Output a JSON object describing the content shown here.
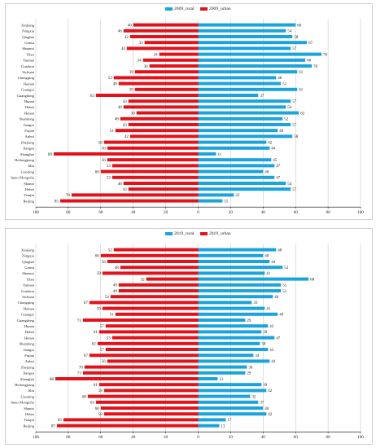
{
  "colors": {
    "rural": "#1aa3dc",
    "urban": "#e3121a",
    "axis": "#000000",
    "grid": "#bfbfbf"
  },
  "chart_data": [
    {
      "type": "bar",
      "orientation": "horizontal-diverging",
      "categories": [
        "Xinjiang",
        "Ningxia",
        "Qinghai",
        "Gansu",
        "Shaanxi",
        "Tibet",
        "Yunnan",
        "Guizhou",
        "Sichuan",
        "Chongqing",
        "Hainan",
        "Guangxi",
        "Guangdong",
        "Hunan",
        "Hubei",
        "Henan",
        "Shandong",
        "Jiangxi",
        "Fujian",
        "Anhui",
        "Zhejiang",
        "Jiangsu",
        "Shanghai",
        "Heilongjiang",
        "Jilin",
        "Liaoning",
        "Inner Mongolia",
        "Shanxi",
        "Hebei",
        "Tianjin",
        "Beijing"
      ],
      "series": [
        {
          "name": "2009_rural",
          "values": [
            60,
            54,
            58,
            67,
            57,
            76,
            66,
            70,
            61,
            48,
            51,
            61,
            37,
            57,
            54,
            62,
            52,
            57,
            49,
            58,
            42,
            44,
            11,
            45,
            47,
            40,
            47,
            54,
            57,
            22,
            15
          ]
        },
        {
          "name": "2009_urban",
          "values": [
            40,
            46,
            42,
            33,
            44,
            24,
            34,
            30,
            39,
            52,
            49,
            39,
            63,
            43,
            46,
            38,
            48,
            43,
            51,
            42,
            58,
            56,
            89,
            56,
            53,
            60,
            53,
            46,
            43,
            78,
            85
          ]
        }
      ],
      "xticks": [
        "100",
        "80",
        "60",
        "40",
        "20",
        "0",
        "20",
        "40",
        "60",
        "80",
        "100"
      ],
      "xlim": [
        -100,
        100
      ]
    },
    {
      "type": "bar",
      "orientation": "horizontal-diverging",
      "categories": [
        "Xinjiang",
        "Ningxia",
        "Qinghai",
        "Gansu",
        "Shaanxi",
        "Tibet",
        "Yunnan",
        "Guizhou",
        "Sichuan",
        "Chongqing",
        "Hainan",
        "Guangxi",
        "Guangdong",
        "Hunan",
        "Hubei",
        "Henan",
        "Shandong",
        "Jiangxi",
        "Fujian",
        "Anhui",
        "Zhejiang",
        "Jiangsu",
        "Shanghai",
        "Heilongjiang",
        "Jilin",
        "Liaoning",
        "Inner Mongolia",
        "Shanxi",
        "Hebei",
        "Tianjin",
        "Beijing"
      ],
      "series": [
        {
          "name": "2019_rural",
          "values": [
            48,
            40,
            44,
            52,
            41,
            68,
            51,
            51,
            46,
            33,
            41,
            49,
            29,
            43,
            39,
            47,
            38,
            43,
            34,
            44,
            30,
            29,
            12,
            39,
            42,
            32,
            37,
            40,
            42,
            17,
            13
          ]
        },
        {
          "name": "2019_urban",
          "values": [
            52,
            60,
            56,
            48,
            59,
            32,
            49,
            49,
            54,
            67,
            59,
            51,
            71,
            57,
            61,
            53,
            62,
            57,
            67,
            56,
            70,
            71,
            88,
            61,
            58,
            68,
            63,
            60,
            58,
            83,
            87
          ]
        }
      ],
      "xticks": [
        "100",
        "80",
        "60",
        "40",
        "20",
        "0",
        "20",
        "40",
        "60",
        "80",
        "100"
      ],
      "xlim": [
        -100,
        100
      ]
    }
  ]
}
